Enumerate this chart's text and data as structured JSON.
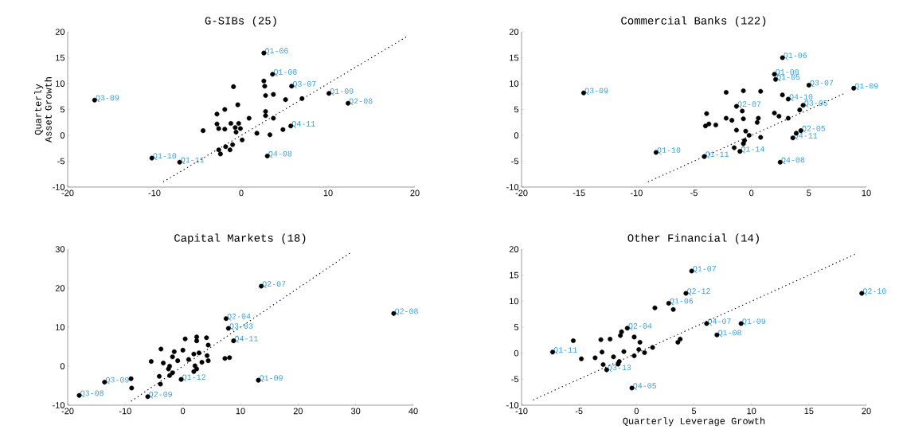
{
  "chart_data": [
    {
      "type": "scatter",
      "title": "G-SIBs (25)",
      "ylabel": "Quarterly Asset Growth",
      "xlim": [
        -20,
        20
      ],
      "ylim": [
        -10,
        20
      ],
      "xticks": [
        -20,
        -10,
        0,
        10,
        20
      ],
      "yticks": [
        -10,
        -5,
        0,
        5,
        10,
        15,
        20
      ],
      "series": [
        {
          "color": "#000000",
          "marker": "circle",
          "x": [
            2.6,
            3.6,
            2.6,
            2.7,
            -0.9,
            5.8,
            10.1,
            12.3,
            -16.9,
            7.0,
            5.1,
            3.7,
            2.8,
            -0.4,
            -1.9,
            -2.8,
            2.8,
            2.8,
            3.7,
            0.9,
            -2.8,
            -2.6,
            -1.9,
            -1.2,
            -0.7,
            -0.6,
            -0.1,
            -0.3,
            -4.4,
            5.7,
            4.8,
            3.3,
            1.8,
            0.1,
            -1.0,
            -1.8,
            -2.6,
            -2.4,
            -1.3,
            3.0,
            -10.3,
            -7.1
          ],
          "values": [
            15.9,
            11.8,
            10.5,
            9.5,
            9.4,
            9.5,
            8.1,
            6.2,
            6.8,
            7.1,
            6.9,
            7.9,
            7.7,
            5.9,
            5.0,
            4.1,
            4.6,
            3.8,
            3.3,
            3.3,
            2.2,
            1.3,
            1.2,
            2.3,
            1.5,
            0.6,
            1.3,
            2.3,
            0.9,
            1.8,
            1.1,
            0.1,
            0.4,
            -0.9,
            -1.8,
            -2.2,
            -2.8,
            -3.6,
            -2.8,
            -4.0,
            -4.4,
            -5.2
          ],
          "value_labels": [
            "Q1-06",
            "Q1-08",
            null,
            null,
            null,
            "Q3-07",
            "Q1-09",
            "Q2-08",
            "Q3-09",
            null,
            null,
            null,
            null,
            null,
            null,
            null,
            null,
            null,
            null,
            null,
            null,
            null,
            null,
            null,
            null,
            null,
            null,
            null,
            null,
            "Q4-11",
            null,
            null,
            null,
            null,
            null,
            null,
            null,
            null,
            null,
            "Q4-08",
            "Q1-10",
            "Q1-11"
          ]
        },
        {
          "type": "line",
          "color": "#000000",
          "marker": "none",
          "line_style": "dotted",
          "x": [
            -9,
            19
          ],
          "values": [
            -9,
            19
          ]
        }
      ]
    },
    {
      "type": "scatter",
      "title": "Commercial Banks (122)",
      "xlim": [
        -20,
        10
      ],
      "ylim": [
        -10,
        20
      ],
      "xticks": [
        -20,
        -15,
        -10,
        -5,
        0,
        5,
        10
      ],
      "yticks": [
        -10,
        -5,
        0,
        5,
        10,
        15,
        20
      ],
      "series": [
        {
          "color": "#000000",
          "marker": "circle",
          "x": [
            2.7,
            2.0,
            2.1,
            5.0,
            8.9,
            -14.6,
            -2.2,
            -0.7,
            0.8,
            2.7,
            3.2,
            4.5,
            4.2,
            -1.3,
            -0.8,
            -3.9,
            2.0,
            2.4,
            3.2,
            -2.2,
            -1.7,
            -0.7,
            0.6,
            0.5,
            -4.0,
            -3.7,
            -3.1,
            -1.3,
            -0.5,
            -0.2,
            0.8,
            3.6,
            3.9,
            4.3,
            -0.6,
            -0.7,
            -1.5,
            -1.0,
            -8.3,
            -4.1,
            2.5
          ],
          "values": [
            15.0,
            11.8,
            10.8,
            9.7,
            9.1,
            8.2,
            8.3,
            8.6,
            8.5,
            7.8,
            7.0,
            5.8,
            4.9,
            5.6,
            4.7,
            4.2,
            4.3,
            3.7,
            3.3,
            3.3,
            2.9,
            3.2,
            3.3,
            2.5,
            1.8,
            2.2,
            2.0,
            1.0,
            0.8,
            0.0,
            -0.4,
            -0.5,
            0.4,
            0.9,
            -1.0,
            -1.6,
            -2.4,
            -3.1,
            -3.3,
            -4.1,
            -5.2
          ],
          "value_labels": [
            "Q1-06",
            "Q1-08",
            "Q1-05",
            "Q3-07",
            "Q1-09",
            "Q3-09",
            null,
            null,
            null,
            null,
            "Q4-10",
            "Q3-05",
            null,
            "Q2-07",
            null,
            null,
            null,
            null,
            null,
            null,
            null,
            null,
            null,
            null,
            null,
            null,
            null,
            null,
            null,
            null,
            null,
            "Q4-11",
            null,
            "Q2-05",
            null,
            null,
            null,
            "Q1-14",
            "Q1-10",
            "Q1-11",
            "Q4-08"
          ]
        },
        {
          "type": "line",
          "color": "#000000",
          "marker": "none",
          "line_style": "dotted",
          "x": [
            -9,
            8
          ],
          "values": [
            -9,
            8
          ]
        }
      ]
    },
    {
      "type": "scatter",
      "title": "Capital Markets (18)",
      "xlim": [
        -20,
        40
      ],
      "ylim": [
        -10,
        30
      ],
      "xticks": [
        -20,
        -10,
        0,
        10,
        20,
        30,
        40
      ],
      "yticks": [
        -10,
        0,
        10,
        20,
        30
      ],
      "series": [
        {
          "color": "#000000",
          "marker": "circle",
          "x": [
            13.6,
            36.6,
            7.5,
            7.9,
            8.8,
            0.4,
            2.4,
            2.4,
            4.1,
            4.4,
            -3.8,
            -1.5,
            0.0,
            1.9,
            2.8,
            4.2,
            -5.5,
            -3.4,
            -1.8,
            -0.9,
            1.0,
            3.3,
            4.4,
            7.3,
            8.1,
            -2.3,
            -2.5,
            2.1,
            2.4,
            1.9,
            -1.8,
            -2.3,
            -0.3,
            -4.1,
            -3.9,
            13.1,
            -9.0,
            -13.6,
            -8.9,
            -18.0,
            -6.1
          ],
          "values": [
            20.5,
            13.5,
            12.2,
            9.7,
            6.5,
            7.0,
            7.5,
            6.5,
            7.3,
            5.4,
            4.4,
            3.7,
            4.1,
            3.1,
            3.4,
            2.7,
            1.2,
            0.8,
            2.4,
            1.4,
            1.7,
            1.0,
            1.4,
            2.0,
            2.2,
            0.0,
            -0.7,
            0.1,
            -0.7,
            -1.4,
            -1.7,
            -2.4,
            -3.4,
            -2.6,
            -4.6,
            -3.6,
            -3.2,
            -4.1,
            -5.6,
            -7.5,
            -7.8
          ],
          "value_labels": [
            "Q2-07",
            "Q2-08",
            "Q2-04",
            "Q3-03",
            "Q4-11",
            null,
            null,
            null,
            null,
            null,
            null,
            null,
            null,
            null,
            null,
            null,
            null,
            null,
            null,
            null,
            null,
            null,
            null,
            null,
            null,
            null,
            null,
            null,
            null,
            null,
            null,
            null,
            "Q1-12",
            null,
            null,
            "Q1-09",
            null,
            "Q3-09",
            null,
            "Q3-08",
            "Q2-09"
          ]
        },
        {
          "type": "line",
          "color": "#000000",
          "marker": "none",
          "line_style": "dotted",
          "x": [
            -9,
            29
          ],
          "values": [
            -9,
            29
          ]
        }
      ]
    },
    {
      "type": "scatter",
      "title": "Other Financial (14)",
      "xlabel": "Quarterly Leverage Growth",
      "xlim": [
        -10,
        20
      ],
      "ylim": [
        -10,
        20
      ],
      "xticks": [
        -10,
        -5,
        0,
        5,
        10,
        15,
        20
      ],
      "yticks": [
        -10,
        -5,
        0,
        5,
        10,
        15,
        20
      ],
      "series": [
        {
          "color": "#000000",
          "marker": "circle",
          "x": [
            4.8,
            4.3,
            19.6,
            2.8,
            1.6,
            3.2,
            6.1,
            9.1,
            7.0,
            3.8,
            3.6,
            -0.8,
            -1.3,
            -1.4,
            -5.5,
            -3.1,
            -2.3,
            -0.2,
            0.3,
            -7.3,
            -4.8,
            -3.6,
            -3.0,
            -2.0,
            -1.1,
            -0.2,
            0.7,
            1.4,
            0.2,
            -1.5,
            -1.6,
            -2.9,
            -2.6,
            -0.4
          ],
          "values": [
            15.8,
            11.5,
            11.5,
            9.6,
            8.7,
            8.4,
            5.7,
            5.7,
            3.5,
            2.7,
            2.1,
            4.8,
            4.1,
            3.4,
            2.4,
            2.6,
            2.7,
            3.1,
            2.1,
            0.2,
            -1.1,
            -0.9,
            0.2,
            -0.7,
            0.3,
            -0.5,
            0.1,
            1.1,
            0.7,
            -1.6,
            -2.1,
            -2.2,
            -3.2,
            -6.7
          ],
          "value_labels": [
            "Q1-07",
            "Q2-12",
            "Q2-10",
            "Q1-06",
            null,
            null,
            "Q4-07",
            "Q1-09",
            "Q1-08",
            null,
            null,
            "Q2-04",
            null,
            null,
            null,
            null,
            null,
            null,
            null,
            "Q1-11",
            null,
            null,
            null,
            null,
            null,
            null,
            null,
            null,
            null,
            null,
            null,
            null,
            "Q3-13",
            "Q4-05"
          ]
        },
        {
          "type": "line",
          "color": "#000000",
          "marker": "none",
          "line_style": "dotted",
          "x": [
            -9,
            19
          ],
          "values": [
            -9,
            19
          ]
        }
      ]
    }
  ]
}
